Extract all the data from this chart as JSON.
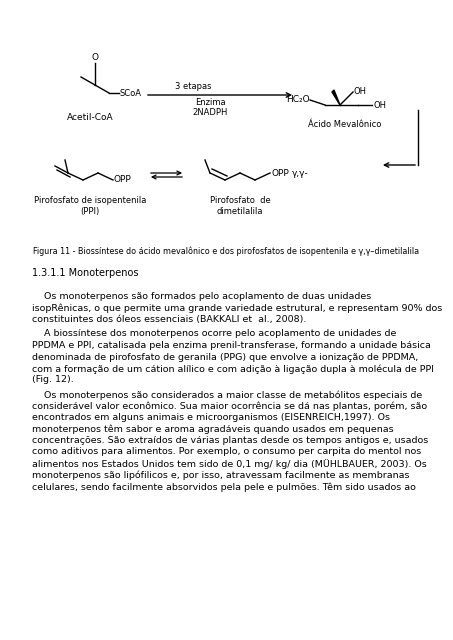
{
  "bg_color": "#ffffff",
  "fig_width": 4.53,
  "fig_height": 6.4,
  "dpi": 100,
  "section_title": "1.3.1.1 Monoterpenos",
  "figure_caption": "Figura 11 - Biossíntese do ácido mevalônico e dos pirofosfatos de isopentenila e γ,γ–dimetilalila",
  "label_acetil": "Acetil-CoA",
  "label_acido": "Ácido Mevalônico",
  "label_enzima": "Enzima\n2NADPH",
  "label_3etapas": "3 etapas",
  "label_ppi_line1": "Pirofosfato de isopentenila",
  "label_ppi_line2": "(PPI)",
  "label_ppd_line1": "Pirofosfato  de",
  "label_ppd_line2": "dimetilalila",
  "label_gg": "γ,γ-",
  "label_opp1": "OPP",
  "label_opp2": "OPP",
  "paragraph1_lines": [
    "    Os monoterpenos são formados pelo acoplamento de duas unidades",
    "isopRênicas, o que permite uma grande variedade estrutural, e representam 90% dos",
    "constituintes dos óleos essenciais (BAKKALI et  al., 2008)."
  ],
  "paragraph2_lines": [
    "    A biossíntese dos monoterpenos ocorre pelo acoplamento de unidades de",
    "PPDMA e PPI, catalisada pela enzima prenil-transferase, formando a unidade básica",
    "denominada de pirofosfato de geranila (PPG) que envolve a ionização de PPDMA,",
    "com a formação de um cátion alílico e com adição à ligação dupla à molécula de PPI",
    "(Fig. 12)."
  ],
  "paragraph3_lines": [
    "    Os monoterpenos são considerados a maior classe de metabólitos especiais de",
    "considerável valor econômico. Sua maior ocorrência se dá nas plantas, porém, são",
    "encontrados em alguns animais e microorganismos (EISENREICH,1997). Os",
    "monoterpenos têm sabor e aroma agradáveis quando usados em pequenas",
    "concentrações. São extraídos de várias plantas desde os tempos antigos e, usados",
    "como aditivos para alimentos. Por exemplo, o consumo per carpita do mentol nos",
    "alimentos nos Estados Unidos tem sido de 0,1 mg/ kg/ dia (MÜHLBAUER, 2003). Os",
    "monoterpenos são lipófilicos e, por isso, atravessam facilmente as membranas",
    "celulares, sendo facilmente absorvidos pela pele e pulmões. Têm sido usados ao"
  ]
}
